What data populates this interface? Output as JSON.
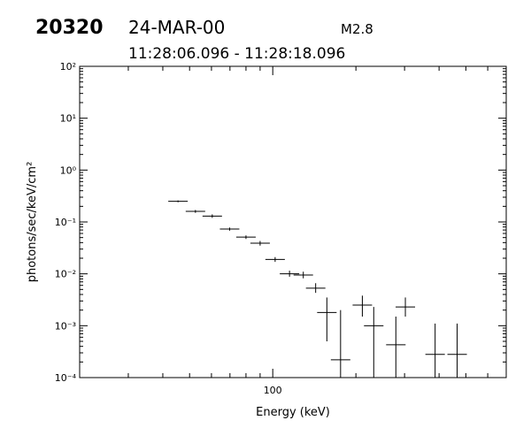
{
  "header": {
    "id": "20320",
    "date": "24-MAR-00",
    "class": "M2.8",
    "time_range": "11:28:06.096 - 11:28:18.096"
  },
  "chart_data": {
    "type": "errorbar",
    "xlabel": "Energy (keV)",
    "ylabel": "photons/sec/keV/cm²",
    "xscale": "log",
    "yscale": "log",
    "color": "#000000",
    "xlim": [
      20,
      700
    ],
    "ylim": [
      0.0001,
      100
    ],
    "xticks": [
      100
    ],
    "yticks": [
      {
        "value": 0.0001,
        "label": "10⁻⁴"
      },
      {
        "value": 0.001,
        "label": "10⁻³"
      },
      {
        "value": 0.01,
        "label": "10⁻²"
      },
      {
        "value": 0.1,
        "label": "10⁻¹"
      },
      {
        "value": 1,
        "label": "10⁰"
      },
      {
        "value": 10,
        "label": "10¹"
      },
      {
        "value": 100,
        "label": "10²"
      }
    ],
    "x": [
      45.4,
      52.5,
      60.4,
      69.8,
      80,
      90,
      102,
      115,
      129,
      143,
      157,
      176,
      211,
      232,
      279,
      302,
      387,
      465
    ],
    "values": [
      0.25,
      0.16,
      0.13,
      0.073,
      0.051,
      0.039,
      0.019,
      0.01,
      0.0095,
      0.0053,
      0.0018,
      0.00022,
      0.0025,
      0.001,
      0.00043,
      0.0023,
      0.00028,
      0.00028
    ],
    "y_low": [
      0.24,
      0.15,
      0.12,
      0.068,
      0.047,
      0.035,
      0.017,
      0.0088,
      0.0082,
      0.0043,
      0.0005,
      5e-05,
      0.0015,
      5e-05,
      5e-05,
      0.0015,
      5e-05,
      5e-05
    ],
    "y_high": [
      0.26,
      0.17,
      0.14,
      0.078,
      0.055,
      0.043,
      0.021,
      0.0115,
      0.011,
      0.0066,
      0.0035,
      0.002,
      0.0038,
      0.0023,
      0.0015,
      0.0035,
      0.0011,
      0.0011
    ]
  }
}
